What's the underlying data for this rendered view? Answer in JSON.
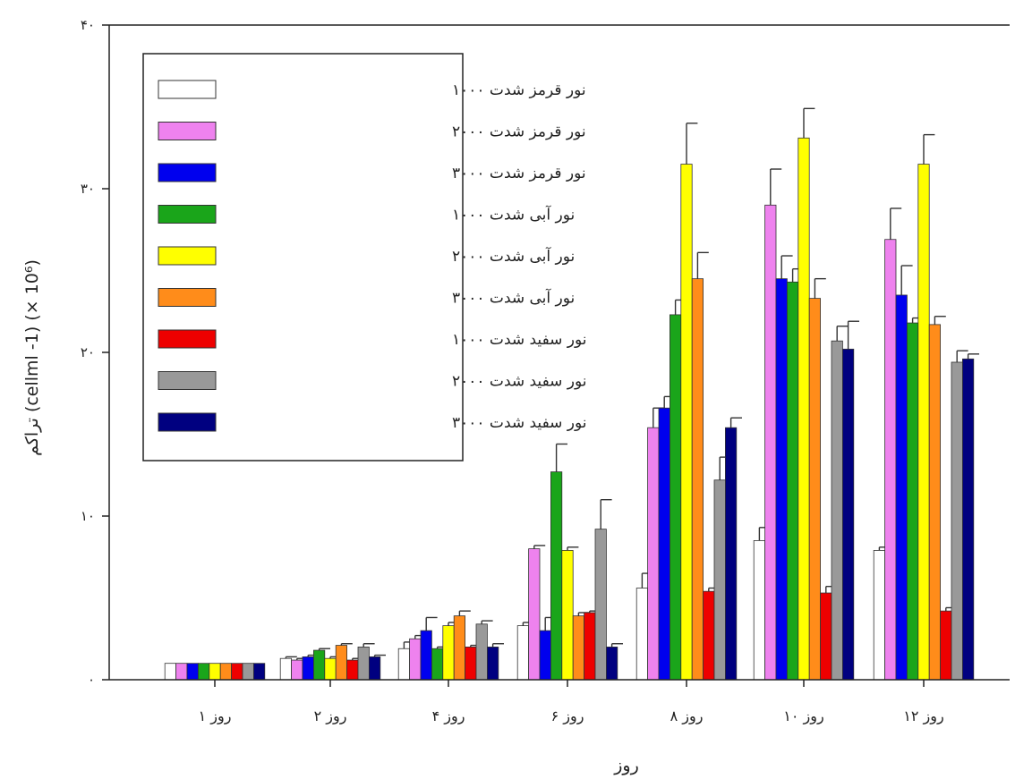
{
  "chart_data": {
    "type": "bar",
    "title": "",
    "xlabel": "روز",
    "ylabel": "تراکم (cellml -1) (× 10⁶)",
    "ylim": [
      0,
      40
    ],
    "yticks": [
      0,
      10,
      20,
      30,
      40
    ],
    "ytick_labels": [
      "۰",
      "۱۰",
      "۲۰",
      "۳۰",
      "۴۰"
    ],
    "grid": false,
    "legend_position": "top-left",
    "categories": [
      "روز ۱",
      "روز ۲",
      "روز ۴",
      "روز ۶",
      "روز ۸",
      "روز ۱۰",
      "روز ۱۲"
    ],
    "series": [
      {
        "name": "نور قرمز شدت ۱۰۰۰",
        "color": "#ffffff",
        "values": [
          1.0,
          1.3,
          1.9,
          3.3,
          5.6,
          8.5,
          7.9
        ],
        "errors": [
          0,
          0.1,
          0.4,
          0.2,
          0.9,
          0.8,
          0.2
        ]
      },
      {
        "name": "نور قرمز شدت ۲۰۰۰",
        "color": "#ee82ee",
        "values": [
          1.0,
          1.2,
          2.5,
          8.0,
          15.4,
          29.0,
          26.9
        ],
        "errors": [
          0,
          0.1,
          0.2,
          0.2,
          1.2,
          2.2,
          1.9
        ]
      },
      {
        "name": "نور قرمز شدت ۳۰۰۰",
        "color": "#0000ee",
        "values": [
          1.0,
          1.4,
          3.0,
          3.0,
          16.6,
          24.5,
          23.5
        ],
        "errors": [
          0,
          0.1,
          0.8,
          0.8,
          0.7,
          1.4,
          1.8
        ]
      },
      {
        "name": "نور آبی شدت ۱۰۰۰",
        "color": "#1aa51a",
        "values": [
          1.0,
          1.8,
          1.9,
          12.7,
          22.3,
          24.3,
          21.8
        ],
        "errors": [
          0,
          0.1,
          0.1,
          1.7,
          0.9,
          0.8,
          0.3
        ]
      },
      {
        "name": "نور آبی شدت ۲۰۰۰",
        "color": "#ffff00",
        "values": [
          1.0,
          1.3,
          3.3,
          7.9,
          31.5,
          33.1,
          31.5
        ],
        "errors": [
          0,
          0.1,
          0.2,
          0.2,
          2.5,
          1.8,
          1.8
        ]
      },
      {
        "name": "نور آبی شدت ۳۰۰۰",
        "color": "#ff8c1a",
        "values": [
          1.0,
          2.1,
          3.9,
          3.9,
          24.5,
          23.3,
          21.7
        ],
        "errors": [
          0,
          0.1,
          0.3,
          0.2,
          1.6,
          1.2,
          0.5
        ]
      },
      {
        "name": "نور سفید شدت ۱۰۰۰",
        "color": "#ee0000",
        "values": [
          1.0,
          1.2,
          2.0,
          4.1,
          5.4,
          5.3,
          4.2
        ],
        "errors": [
          0,
          0.1,
          0.1,
          0.1,
          0.2,
          0.4,
          0.2
        ]
      },
      {
        "name": "نور سفید شدت ۲۰۰۰",
        "color": "#999999",
        "values": [
          1.0,
          2.0,
          3.4,
          9.2,
          12.2,
          20.7,
          19.4
        ],
        "errors": [
          0,
          0.2,
          0.2,
          1.8,
          1.4,
          0.9,
          0.7
        ]
      },
      {
        "name": "نور سفید شدت ۳۰۰۰",
        "color": "#000080",
        "values": [
          1.0,
          1.4,
          2.0,
          2.0,
          15.4,
          20.2,
          19.6
        ],
        "errors": [
          0,
          0.1,
          0.2,
          0.2,
          0.6,
          1.7,
          0.3
        ]
      }
    ]
  }
}
